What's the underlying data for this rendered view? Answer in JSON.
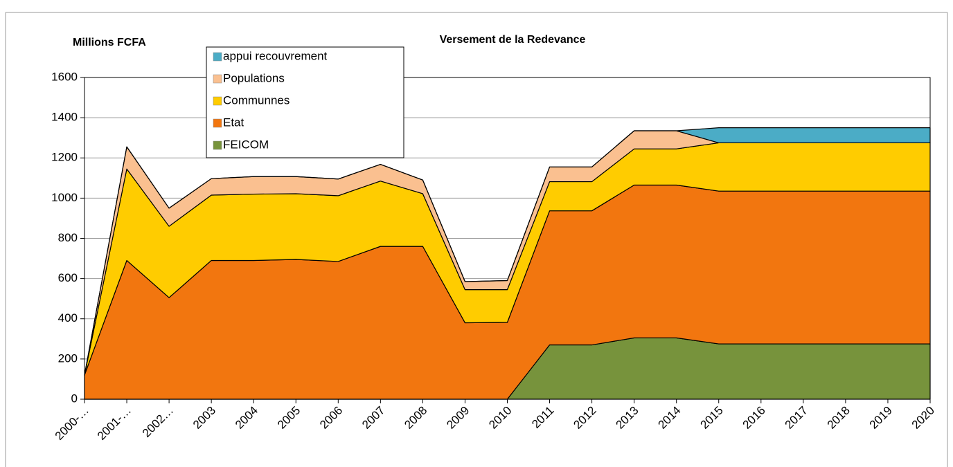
{
  "chart_data": {
    "type": "stacked_area",
    "title": "Versement de la Redevance",
    "y_label": "Millions FCFA",
    "categories": [
      "2000-…",
      "2001-…",
      "2002…",
      "2003",
      "2004",
      "2005",
      "2006",
      "2007",
      "2008",
      "2009",
      "2010",
      "2011",
      "2012",
      "2013",
      "2014",
      "2015",
      "2016",
      "2017",
      "2018",
      "2019",
      "2020"
    ],
    "series": [
      {
        "name": "FEICOM",
        "color": "#77933c",
        "values": [
          0,
          0,
          0,
          0,
          0,
          0,
          0,
          0,
          0,
          0,
          0,
          270,
          270,
          305,
          305,
          275,
          275,
          275,
          275,
          275,
          275
        ]
      },
      {
        "name": "Etat",
        "color": "#f2760f",
        "values": [
          120,
          690,
          505,
          690,
          690,
          695,
          685,
          760,
          760,
          380,
          382,
          667,
          667,
          760,
          760,
          760,
          760,
          760,
          760,
          760,
          760
        ]
      },
      {
        "name": "Communnes",
        "color": "#ffcc00",
        "values": [
          0,
          455,
          355,
          325,
          330,
          327,
          327,
          325,
          262,
          165,
          163,
          145,
          145,
          180,
          180,
          240,
          240,
          240,
          240,
          240,
          240
        ]
      },
      {
        "name": "Populations",
        "color": "#fac090",
        "values": [
          0,
          110,
          90,
          82,
          87,
          85,
          83,
          83,
          68,
          40,
          45,
          73,
          73,
          90,
          90,
          0,
          0,
          0,
          0,
          0,
          0
        ]
      },
      {
        "name": "appui recouvrement",
        "color": "#4bacc6",
        "values": [
          0,
          0,
          0,
          0,
          0,
          0,
          0,
          0,
          0,
          0,
          0,
          0,
          0,
          0,
          0,
          75,
          75,
          75,
          75,
          75,
          75
        ]
      }
    ],
    "ylim": [
      0,
      1600
    ],
    "yticks": [
      0,
      200,
      400,
      600,
      800,
      1000,
      1200,
      1400,
      1600
    ],
    "grid": true
  }
}
